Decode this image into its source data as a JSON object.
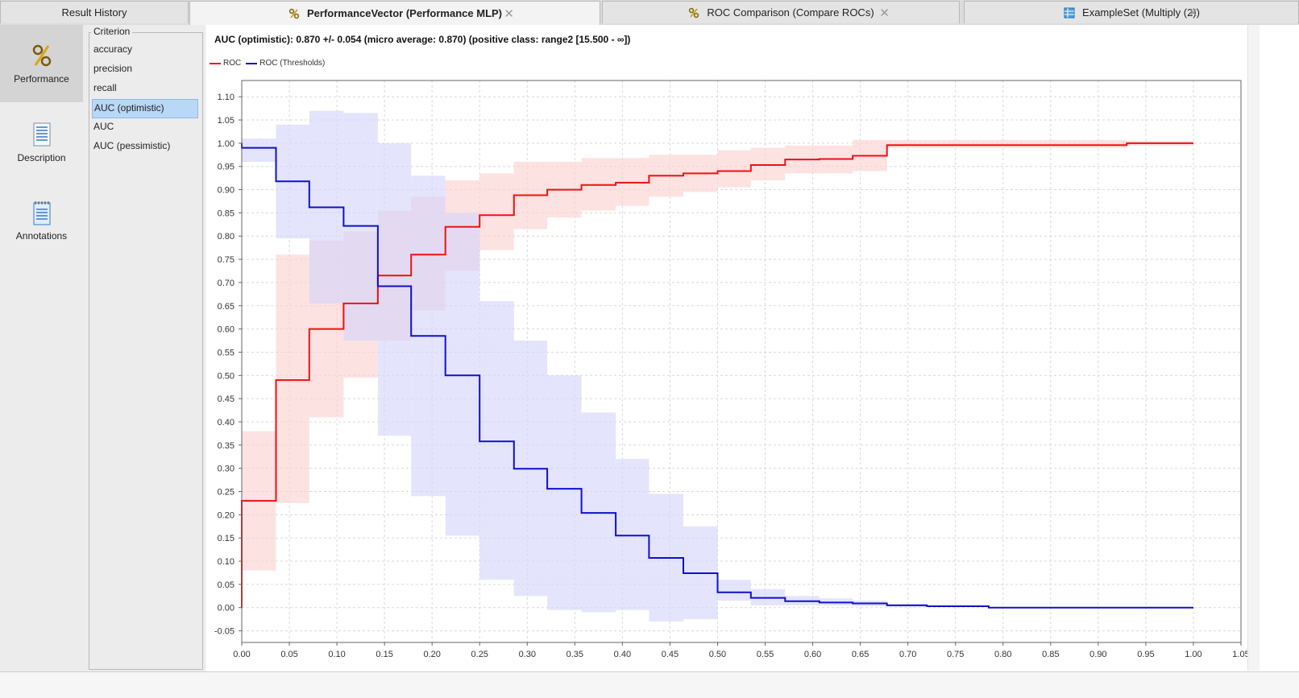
{
  "tabs": [
    {
      "label": "Result History",
      "icon": "none",
      "active": false
    },
    {
      "label": "PerformanceVector (Performance MLP)",
      "icon": "percent-icon",
      "active": true
    },
    {
      "label": "ROC Comparison (Compare ROCs)",
      "icon": "percent-icon",
      "active": false
    },
    {
      "label": "ExampleSet (Multiply (2))",
      "icon": "table-icon",
      "active": false
    }
  ],
  "sidenav": [
    {
      "label": "Performance",
      "icon": "percent-icon",
      "active": true
    },
    {
      "label": "Description",
      "icon": "document-icon",
      "active": false
    },
    {
      "label": "Annotations",
      "icon": "notepad-icon",
      "active": false
    }
  ],
  "criterion": {
    "title": "Criterion",
    "items": [
      "accuracy",
      "precision",
      "recall",
      "AUC (optimistic)",
      "AUC",
      "AUC (pessimistic)"
    ],
    "selected_index": 3
  },
  "headline": "AUC (optimistic): 0.870 +/- 0.054 (micro average: 0.870) (positive class: range2 [15.500 - ∞])",
  "colors": {
    "roc": "#ee1111",
    "thresholds": "#1010cc",
    "roc_band": "#fcd2d2",
    "thr_band": "#d6d6fb"
  },
  "chart_data": {
    "type": "line",
    "xlim": [
      0.0,
      1.05
    ],
    "ylim": [
      -0.075,
      1.135
    ],
    "xticks": [
      "0.00",
      "0.05",
      "0.10",
      "0.15",
      "0.20",
      "0.25",
      "0.30",
      "0.35",
      "0.40",
      "0.45",
      "0.50",
      "0.55",
      "0.60",
      "0.65",
      "0.70",
      "0.75",
      "0.80",
      "0.85",
      "0.90",
      "0.95",
      "1.00",
      "1.05"
    ],
    "yticks": [
      "-0.05",
      "0.00",
      "0.05",
      "0.10",
      "0.15",
      "0.20",
      "0.25",
      "0.30",
      "0.35",
      "0.40",
      "0.45",
      "0.50",
      "0.55",
      "0.60",
      "0.65",
      "0.70",
      "0.75",
      "0.80",
      "0.85",
      "0.90",
      "0.95",
      "1.00",
      "1.05",
      "1.10"
    ],
    "grid": true,
    "legend": "top-left",
    "series": [
      {
        "name": "ROC",
        "x": [
          0.0,
          0.0,
          0.036,
          0.036,
          0.071,
          0.071,
          0.107,
          0.107,
          0.143,
          0.143,
          0.178,
          0.178,
          0.214,
          0.214,
          0.25,
          0.25,
          0.286,
          0.286,
          0.321,
          0.321,
          0.357,
          0.357,
          0.393,
          0.393,
          0.428,
          0.428,
          0.464,
          0.464,
          0.5,
          0.5,
          0.535,
          0.535,
          0.571,
          0.571,
          0.607,
          0.607,
          0.642,
          0.642,
          0.678,
          0.678,
          0.93,
          0.93,
          1.0
        ],
        "y": [
          0.0,
          0.23,
          0.23,
          0.49,
          0.49,
          0.6,
          0.6,
          0.655,
          0.655,
          0.715,
          0.715,
          0.76,
          0.76,
          0.82,
          0.82,
          0.845,
          0.845,
          0.888,
          0.888,
          0.9,
          0.9,
          0.91,
          0.91,
          0.915,
          0.915,
          0.93,
          0.93,
          0.935,
          0.935,
          0.94,
          0.94,
          0.953,
          0.953,
          0.965,
          0.965,
          0.966,
          0.966,
          0.973,
          0.973,
          0.996,
          0.996,
          1.0,
          1.0
        ],
        "band_steps": [
          [
            0.0,
            0.036,
            0.08,
            0.38
          ],
          [
            0.036,
            0.071,
            0.225,
            0.76
          ],
          [
            0.071,
            0.107,
            0.41,
            0.79
          ],
          [
            0.107,
            0.143,
            0.495,
            0.81
          ],
          [
            0.143,
            0.178,
            0.575,
            0.855
          ],
          [
            0.178,
            0.214,
            0.64,
            0.885
          ],
          [
            0.214,
            0.25,
            0.725,
            0.92
          ],
          [
            0.25,
            0.286,
            0.77,
            0.935
          ],
          [
            0.286,
            0.321,
            0.815,
            0.96
          ],
          [
            0.321,
            0.357,
            0.84,
            0.96
          ],
          [
            0.357,
            0.393,
            0.855,
            0.968
          ],
          [
            0.393,
            0.428,
            0.865,
            0.968
          ],
          [
            0.428,
            0.464,
            0.885,
            0.975
          ],
          [
            0.464,
            0.5,
            0.895,
            0.975
          ],
          [
            0.5,
            0.535,
            0.905,
            0.985
          ],
          [
            0.535,
            0.571,
            0.92,
            0.99
          ],
          [
            0.571,
            0.607,
            0.935,
            0.995
          ],
          [
            0.607,
            0.642,
            0.935,
            0.995
          ],
          [
            0.642,
            0.678,
            0.94,
            1.007
          ],
          [
            0.678,
            0.93,
            0.99,
            1.007
          ],
          [
            0.93,
            1.0,
            0.995,
            1.005
          ]
        ]
      },
      {
        "name": "ROC (Thresholds)",
        "x": [
          0.0,
          0.0,
          0.036,
          0.036,
          0.071,
          0.071,
          0.107,
          0.107,
          0.143,
          0.143,
          0.178,
          0.178,
          0.214,
          0.214,
          0.25,
          0.25,
          0.286,
          0.286,
          0.321,
          0.321,
          0.357,
          0.357,
          0.393,
          0.393,
          0.428,
          0.428,
          0.464,
          0.464,
          0.5,
          0.5,
          0.535,
          0.535,
          0.571,
          0.571,
          0.607,
          0.607,
          0.642,
          0.642,
          0.678,
          0.678,
          0.72,
          0.72,
          0.785,
          0.785,
          1.0
        ],
        "y": [
          1.0,
          0.99,
          0.99,
          0.918,
          0.918,
          0.862,
          0.862,
          0.822,
          0.822,
          0.692,
          0.692,
          0.585,
          0.585,
          0.5,
          0.5,
          0.358,
          0.358,
          0.299,
          0.299,
          0.256,
          0.256,
          0.204,
          0.204,
          0.155,
          0.155,
          0.107,
          0.107,
          0.074,
          0.074,
          0.033,
          0.033,
          0.021,
          0.021,
          0.014,
          0.014,
          0.011,
          0.011,
          0.009,
          0.009,
          0.005,
          0.005,
          0.003,
          0.003,
          0.0,
          0.0
        ],
        "band_steps": [
          [
            0.0,
            0.036,
            0.96,
            1.01
          ],
          [
            0.036,
            0.071,
            0.795,
            1.04
          ],
          [
            0.071,
            0.107,
            0.655,
            1.07
          ],
          [
            0.107,
            0.143,
            0.575,
            1.065
          ],
          [
            0.143,
            0.178,
            0.37,
            1.0
          ],
          [
            0.178,
            0.214,
            0.24,
            0.93
          ],
          [
            0.214,
            0.25,
            0.155,
            0.85
          ],
          [
            0.25,
            0.286,
            0.06,
            0.66
          ],
          [
            0.286,
            0.321,
            0.025,
            0.575
          ],
          [
            0.321,
            0.357,
            -0.005,
            0.5
          ],
          [
            0.357,
            0.393,
            -0.01,
            0.42
          ],
          [
            0.393,
            0.428,
            -0.005,
            0.32
          ],
          [
            0.428,
            0.464,
            -0.03,
            0.245
          ],
          [
            0.464,
            0.5,
            -0.025,
            0.175
          ],
          [
            0.5,
            0.535,
            0.015,
            0.06
          ],
          [
            0.535,
            0.571,
            0.005,
            0.04
          ],
          [
            0.571,
            0.607,
            0.005,
            0.025
          ],
          [
            0.607,
            0.642,
            0.005,
            0.02
          ],
          [
            0.642,
            0.678,
            0.003,
            0.015
          ],
          [
            0.678,
            0.72,
            0.002,
            0.008
          ]
        ]
      }
    ]
  }
}
